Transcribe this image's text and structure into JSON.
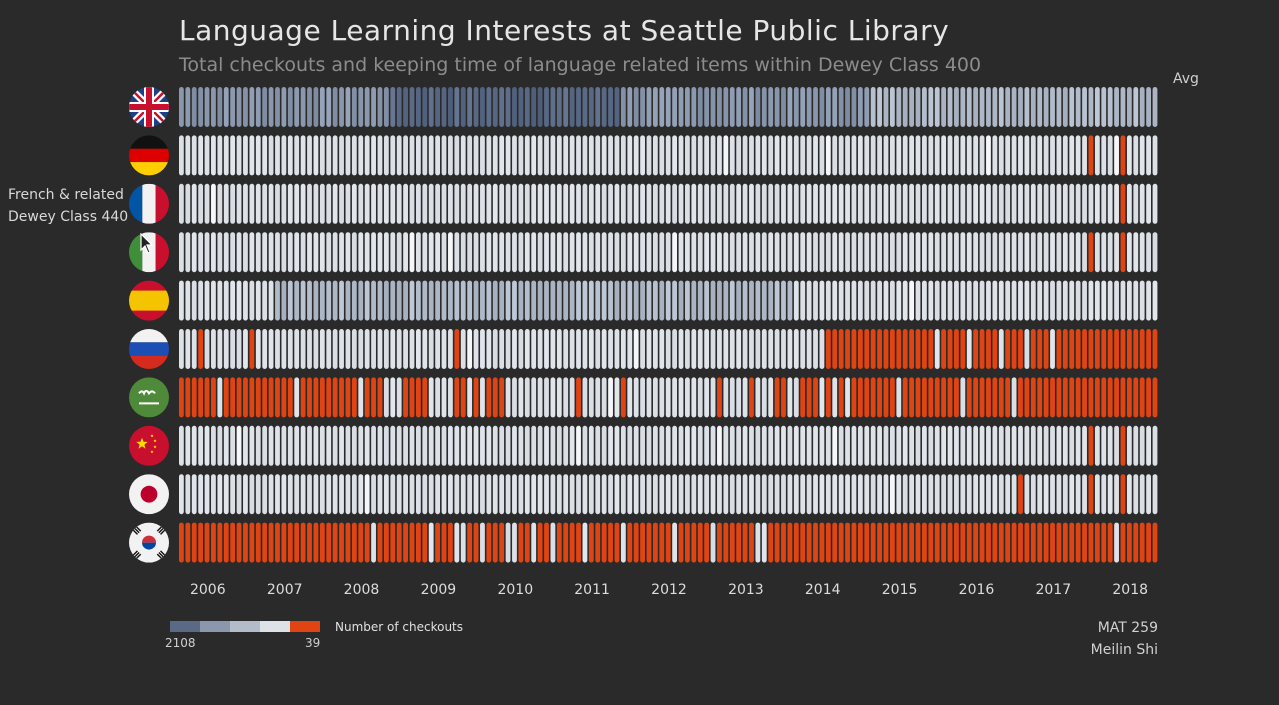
{
  "title": "Language Learning Interests at Seattle Public Library",
  "subtitle": "Total checkouts and keeping time of language related items within Dewey Class 400",
  "avg_label": "Avg",
  "hover": {
    "line1": "French & related",
    "line2": "Dewey Class 440"
  },
  "legend": {
    "title": "Number of checkouts",
    "min_label": "2108",
    "max_label": "39",
    "colors": [
      "#5a6a86",
      "#8a97ad",
      "#b3bccb",
      "#dde1e8",
      "#e04412"
    ]
  },
  "credits": {
    "course": "MAT 259",
    "author": "Meilin Shi"
  },
  "colors": {
    "background": "#2a2a2a",
    "dark_blue": "#5a6a86",
    "mid_blue": "#8a97ad",
    "light_blue": "#b3bccb",
    "pale": "#dde1e8",
    "orange": "#e04412"
  },
  "chart_data": {
    "type": "heatmap",
    "title": "Language Learning Interests at Seattle Public Library",
    "subtitle": "Total checkouts and keeping time of language related items within Dewey Class 400",
    "x_axis": {
      "tick_labels": [
        "2006",
        "2007",
        "2008",
        "2009",
        "2010",
        "2011",
        "2012",
        "2013",
        "2014",
        "2015",
        "2016",
        "2017",
        "2018"
      ],
      "range": [
        "2005-10",
        "2018-06"
      ],
      "unit": "month"
    },
    "color_scale": {
      "title": "Number of checkouts",
      "from": 2108,
      "to": 39
    },
    "rows": [
      {
        "flag": "united-kingdom",
        "segments": [
          {
            "from": "2005-10",
            "to": "2008-07",
            "level": 2
          },
          {
            "from": "2008-07",
            "to": "2011-07",
            "level": 1
          },
          {
            "from": "2011-07",
            "to": "2013-02",
            "level": 2
          },
          {
            "from": "2013-02",
            "to": "2014-10",
            "level": 2
          },
          {
            "from": "2014-10",
            "to": "2018-07",
            "level": 3
          }
        ]
      },
      {
        "flag": "germany",
        "segments": [
          {
            "from": "2005-10",
            "to": "2018-07",
            "level": 4
          }
        ],
        "highlights": [
          "2017-08",
          "2018-01"
        ]
      },
      {
        "flag": "france",
        "label": "French & related Dewey Class 440",
        "segments": [
          {
            "from": "2005-10",
            "to": "2018-07",
            "level": 4
          }
        ],
        "highlights": [
          "2018-01"
        ]
      },
      {
        "flag": "italy",
        "segments": [
          {
            "from": "2005-10",
            "to": "2018-07",
            "level": 4
          }
        ],
        "highlights": [
          "2017-08",
          "2018-01"
        ]
      },
      {
        "flag": "spain",
        "segments": [
          {
            "from": "2005-10",
            "to": "2007-01",
            "level": 4
          },
          {
            "from": "2007-01",
            "to": "2011-11",
            "level": 3
          },
          {
            "from": "2011-11",
            "to": "2013-10",
            "level": 3
          },
          {
            "from": "2013-10",
            "to": "2018-07",
            "level": 4
          }
        ]
      },
      {
        "flag": "russia",
        "segments": [
          {
            "from": "2005-10",
            "to": "2014-03",
            "level": 4
          },
          {
            "from": "2014-03",
            "to": "2018-07",
            "level": 5
          }
        ],
        "highlights": [
          "2006-01",
          "2006-09",
          "2009-05"
        ],
        "gaps": [
          "2015-08",
          "2016-01",
          "2016-06",
          "2016-10",
          "2017-02"
        ]
      },
      {
        "flag": "saudi-arabia",
        "segments": [
          {
            "from": "2005-10",
            "to": "2018-07",
            "level": 5
          }
        ],
        "gaps": [
          "2006-04",
          "2007-04",
          "2008-02",
          "2008-06",
          "2008-07",
          "2008-08",
          "2009-01",
          "2009-02",
          "2009-03",
          "2009-04",
          "2009-07",
          "2009-09",
          "2010-01",
          "2010-02",
          "2010-03",
          "2010-04",
          "2010-05",
          "2010-06",
          "2010-07",
          "2010-08",
          "2010-09",
          "2010-10",
          "2010-11",
          "2011-01",
          "2011-02",
          "2011-03",
          "2011-04",
          "2011-05",
          "2011-06",
          "2011-08",
          "2011-09",
          "2011-10",
          "2011-11",
          "2011-12",
          "2012-01",
          "2012-02",
          "2012-03",
          "2012-04",
          "2012-05",
          "2012-06",
          "2012-07",
          "2012-08",
          "2012-09",
          "2012-11",
          "2012-12",
          "2013-01",
          "2013-02",
          "2013-04",
          "2013-05",
          "2013-06",
          "2013-09",
          "2013-10",
          "2014-02",
          "2014-04",
          "2014-06",
          "2015-02",
          "2015-12",
          "2016-08"
        ]
      },
      {
        "flag": "china",
        "segments": [
          {
            "from": "2005-10",
            "to": "2018-07",
            "level": 4
          }
        ],
        "highlights": [
          "2017-08",
          "2018-01"
        ]
      },
      {
        "flag": "japan",
        "segments": [
          {
            "from": "2005-10",
            "to": "2018-07",
            "level": 4
          }
        ],
        "highlights": [
          "2016-09",
          "2017-08",
          "2018-01"
        ]
      },
      {
        "flag": "south-korea",
        "segments": [
          {
            "from": "2005-10",
            "to": "2018-07",
            "level": 5
          }
        ],
        "gaps": [
          "2008-04",
          "2009-01",
          "2009-05",
          "2009-06",
          "2009-09",
          "2010-01",
          "2010-02",
          "2010-05",
          "2010-08",
          "2011-01",
          "2011-07",
          "2012-03",
          "2012-09",
          "2013-04",
          "2013-05",
          "2017-12"
        ]
      }
    ]
  }
}
